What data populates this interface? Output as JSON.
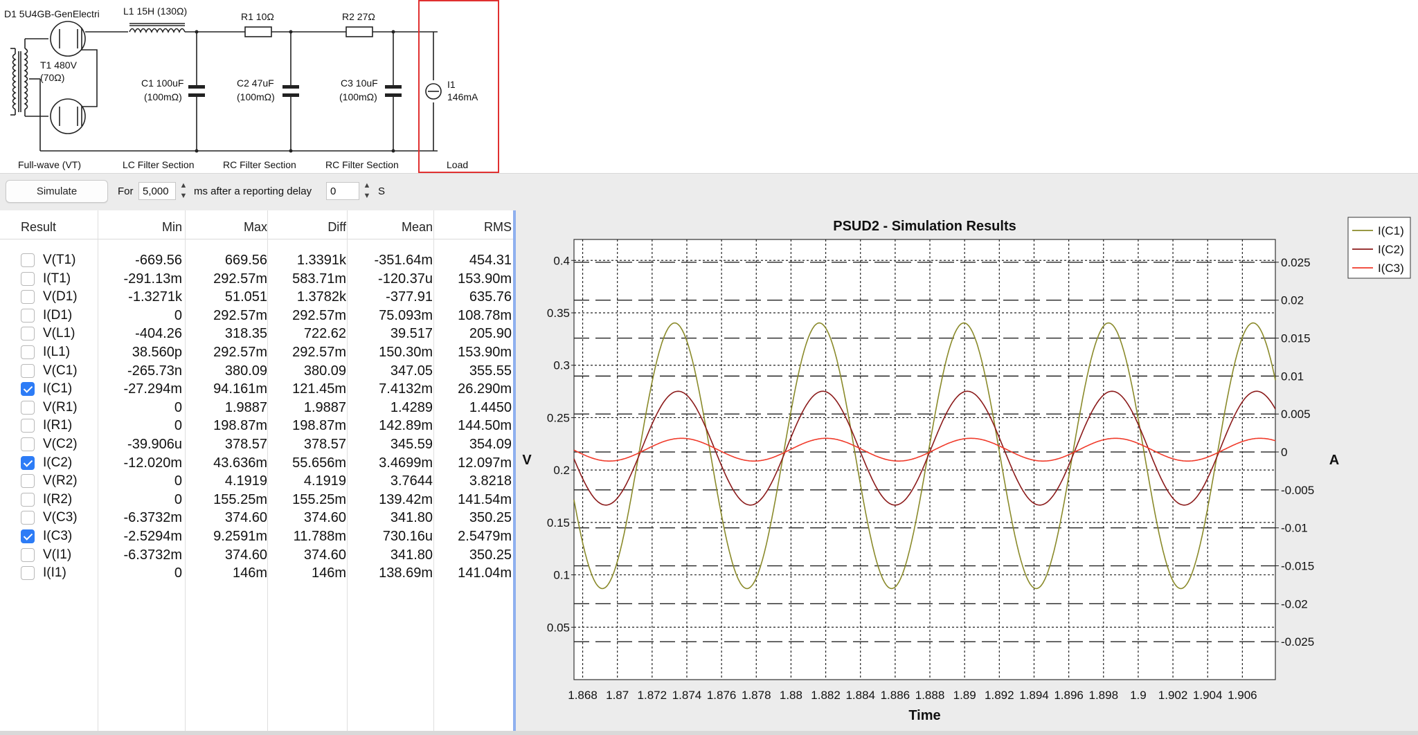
{
  "schematic": {
    "labels": {
      "d1": "D1 5U4GB-GenElectri",
      "l1": "L1 15H (130Ω)",
      "r1": "R1 10Ω",
      "r2": "R2 27Ω",
      "t1_a": "T1 480V",
      "t1_b": "(70Ω)",
      "c1_a": "C1 100uF",
      "c1_b": "(100mΩ)",
      "c2_a": "C2 47uF",
      "c2_b": "(100mΩ)",
      "c3_a": "C3 10uF",
      "c3_b": "(100mΩ)",
      "i1_a": "I1",
      "i1_b": "146mA"
    },
    "sections": [
      "Full-wave (VT)",
      "LC Filter Section",
      "RC Filter Section",
      "RC Filter Section",
      "Load"
    ],
    "load_highlight_color": "#e03030"
  },
  "toolbar": {
    "simulate_label": "Simulate",
    "for_label": "For",
    "duration_value": "5,000",
    "after_label": "ms after a reporting delay",
    "delay_value": "0",
    "unit_label": "S"
  },
  "results": {
    "columns": [
      "Result",
      "Min",
      "Max",
      "Diff",
      "Mean",
      "RMS"
    ],
    "rows": [
      {
        "name": "V(T1)",
        "checked": false,
        "min": "-669.56",
        "max": "669.56",
        "diff": "1.3391k",
        "mean": "-351.64m",
        "rms": "454.31"
      },
      {
        "name": "I(T1)",
        "checked": false,
        "min": "-291.13m",
        "max": "292.57m",
        "diff": "583.71m",
        "mean": "-120.37u",
        "rms": "153.90m"
      },
      {
        "name": "V(D1)",
        "checked": false,
        "min": "-1.3271k",
        "max": "51.051",
        "diff": "1.3782k",
        "mean": "-377.91",
        "rms": "635.76"
      },
      {
        "name": "I(D1)",
        "checked": false,
        "min": "0",
        "max": "292.57m",
        "diff": "292.57m",
        "mean": "75.093m",
        "rms": "108.78m"
      },
      {
        "name": "V(L1)",
        "checked": false,
        "min": "-404.26",
        "max": "318.35",
        "diff": "722.62",
        "mean": "39.517",
        "rms": "205.90"
      },
      {
        "name": "I(L1)",
        "checked": false,
        "min": "38.560p",
        "max": "292.57m",
        "diff": "292.57m",
        "mean": "150.30m",
        "rms": "153.90m"
      },
      {
        "name": "V(C1)",
        "checked": false,
        "min": "-265.73n",
        "max": "380.09",
        "diff": "380.09",
        "mean": "347.05",
        "rms": "355.55"
      },
      {
        "name": "I(C1)",
        "checked": true,
        "min": "-27.294m",
        "max": "94.161m",
        "diff": "121.45m",
        "mean": "7.4132m",
        "rms": "26.290m"
      },
      {
        "name": "V(R1)",
        "checked": false,
        "min": "0",
        "max": "1.9887",
        "diff": "1.9887",
        "mean": "1.4289",
        "rms": "1.4450"
      },
      {
        "name": "I(R1)",
        "checked": false,
        "min": "0",
        "max": "198.87m",
        "diff": "198.87m",
        "mean": "142.89m",
        "rms": "144.50m"
      },
      {
        "name": "V(C2)",
        "checked": false,
        "min": "-39.906u",
        "max": "378.57",
        "diff": "378.57",
        "mean": "345.59",
        "rms": "354.09"
      },
      {
        "name": "I(C2)",
        "checked": true,
        "min": "-12.020m",
        "max": "43.636m",
        "diff": "55.656m",
        "mean": "3.4699m",
        "rms": "12.097m"
      },
      {
        "name": "V(R2)",
        "checked": false,
        "min": "0",
        "max": "4.1919",
        "diff": "4.1919",
        "mean": "3.7644",
        "rms": "3.8218"
      },
      {
        "name": "I(R2)",
        "checked": false,
        "min": "0",
        "max": "155.25m",
        "diff": "155.25m",
        "mean": "139.42m",
        "rms": "141.54m"
      },
      {
        "name": "V(C3)",
        "checked": false,
        "min": "-6.3732m",
        "max": "374.60",
        "diff": "374.60",
        "mean": "341.80",
        "rms": "350.25"
      },
      {
        "name": "I(C3)",
        "checked": true,
        "min": "-2.5294m",
        "max": "9.2591m",
        "diff": "11.788m",
        "mean": "730.16u",
        "rms": "2.5479m"
      },
      {
        "name": "V(I1)",
        "checked": false,
        "min": "-6.3732m",
        "max": "374.60",
        "diff": "374.60",
        "mean": "341.80",
        "rms": "350.25"
      },
      {
        "name": "I(I1)",
        "checked": false,
        "min": "0",
        "max": "146m",
        "diff": "146m",
        "mean": "138.69m",
        "rms": "141.04m"
      }
    ]
  },
  "chart_data": {
    "type": "line",
    "title": "PSUD2 - Simulation Results",
    "xlabel": "Time",
    "ylabel": "V",
    "y2label": "A",
    "xlim": [
      1.8675,
      1.9079
    ],
    "ylim": [
      0.0,
      0.42
    ],
    "y2lim": [
      -0.03,
      0.028
    ],
    "x_ticks": [
      1.868,
      1.87,
      1.872,
      1.874,
      1.876,
      1.878,
      1.88,
      1.882,
      1.884,
      1.886,
      1.888,
      1.89,
      1.892,
      1.894,
      1.896,
      1.898,
      1.9,
      1.902,
      1.904,
      1.906
    ],
    "x_tick_labels": [
      "1.868",
      "1.87",
      "1.872",
      "1.874",
      "1.876",
      "1.878",
      "1.88",
      "1.882",
      "1.884",
      "1.886",
      "1.888",
      "1.89",
      "1.892",
      "1.894",
      "1.896",
      "1.898",
      "1.9",
      "1.902",
      "1.904",
      "1.906"
    ],
    "y_ticks": [
      0.05,
      0.1,
      0.15,
      0.2,
      0.25,
      0.3,
      0.35,
      0.4
    ],
    "y_tick_labels": [
      "0.05",
      "0.1",
      "0.15",
      "0.2",
      "0.25",
      "0.3",
      "0.35",
      "0.4"
    ],
    "y2_ticks": [
      -0.025,
      -0.02,
      -0.015,
      -0.01,
      -0.005,
      0,
      0.005,
      0.01,
      0.015,
      0.02,
      0.025
    ],
    "y2_tick_labels": [
      "-0.025",
      "-0.02",
      "-0.015",
      "-0.01",
      "-0.005",
      "0",
      "0.005",
      "0.01",
      "0.015",
      "0.02",
      "0.025"
    ],
    "grid": true,
    "legend_position": "top-right",
    "period": 0.00833,
    "series": [
      {
        "name": "I(C1)",
        "color": "#8a8a2a",
        "axis": "y2",
        "mean": -0.0005,
        "amplitude": 0.0175,
        "peak_x": 1.8733
      },
      {
        "name": "I(C2)",
        "color": "#8b1a1a",
        "axis": "y2",
        "mean": 0.0005,
        "amplitude": 0.0075,
        "peak_x": 1.8735
      },
      {
        "name": "I(C3)",
        "color": "#f03a2a",
        "axis": "y2",
        "mean": 0.0003,
        "amplitude": 0.0015,
        "peak_x": 1.8737
      }
    ]
  }
}
